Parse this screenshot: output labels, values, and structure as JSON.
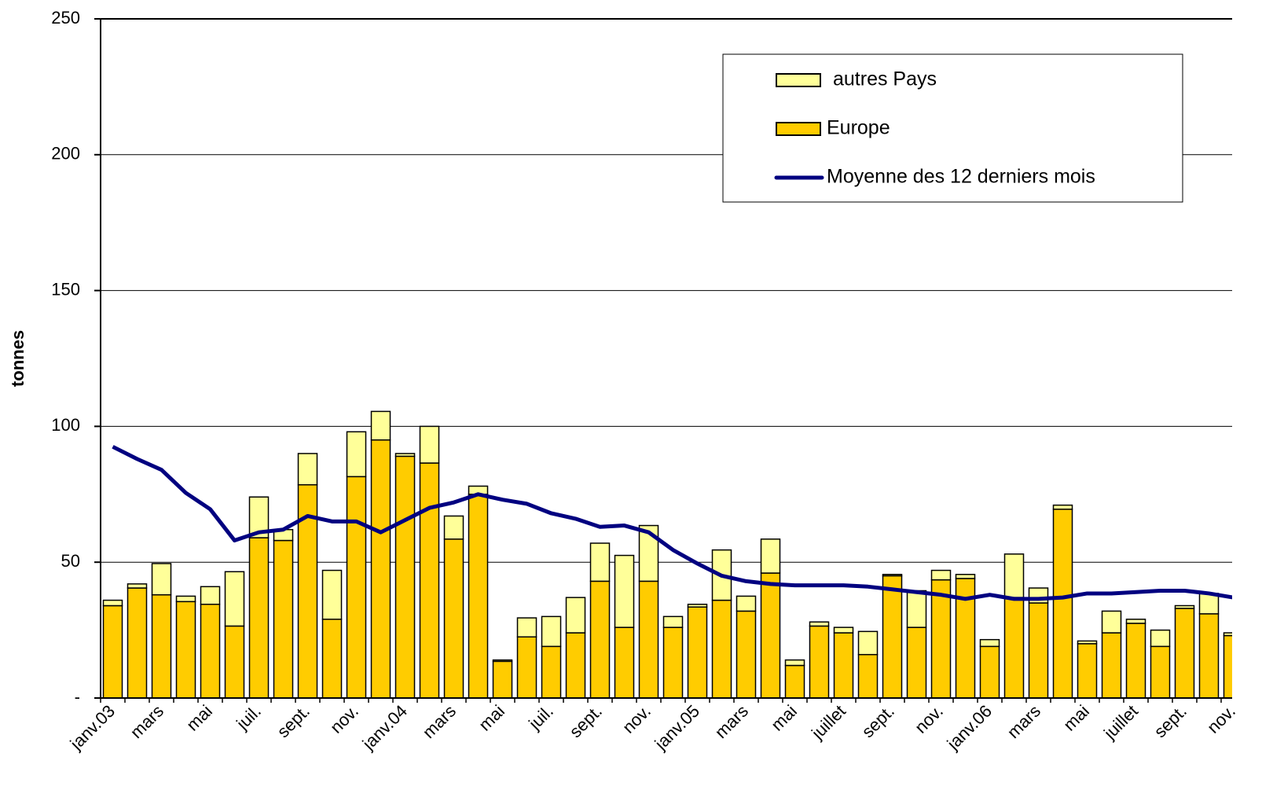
{
  "chart_data": {
    "type": "bar",
    "stacked": true,
    "y_label": "tonnes",
    "categories": [
      "janv.03",
      null,
      "mars",
      null,
      "mai",
      null,
      "juil.",
      null,
      "sept.",
      null,
      "nov.",
      null,
      "janv.04",
      null,
      "mars",
      null,
      "mai",
      null,
      "juil.",
      null,
      "sept.",
      null,
      "nov.",
      null,
      "janv.05",
      null,
      "mars",
      null,
      "mai",
      null,
      "juillet",
      null,
      "sept.",
      null,
      "nov.",
      null,
      "janv.06",
      null,
      "mars",
      null,
      "mai",
      null,
      "juillet",
      null,
      "sept.",
      null,
      "nov."
    ],
    "series": [
      {
        "name": "Europe",
        "type": "bar",
        "color": "#ffcc00",
        "values": [
          34,
          40.5,
          38,
          35.5,
          34.5,
          26.5,
          59,
          58,
          78.5,
          29,
          81.5,
          95,
          89,
          86.5,
          58.5,
          75,
          13.5,
          22.5,
          19,
          24,
          43,
          26,
          43,
          26,
          33.5,
          36,
          32,
          46,
          12,
          26.5,
          24,
          16,
          45,
          26,
          43.5,
          44,
          19,
          37,
          35,
          69.5,
          20,
          24,
          27.5,
          19,
          33,
          31,
          23
        ]
      },
      {
        "name": "autres Pays",
        "type": "bar",
        "color": "#ffff99",
        "values": [
          2,
          1.5,
          11.5,
          2,
          6.5,
          20,
          15,
          4,
          11.5,
          18,
          16.5,
          10.5,
          1,
          13.5,
          8.5,
          3,
          0.5,
          7,
          11,
          13,
          14,
          26.5,
          20.5,
          4,
          1,
          18.5,
          5.5,
          12.5,
          2,
          1.5,
          2,
          8.5,
          0.5,
          13.5,
          3.5,
          1.5,
          2.5,
          16,
          5.5,
          1.5,
          1,
          8,
          1.5,
          6,
          1,
          7.5,
          1
        ]
      },
      {
        "name": "Moyenne des 12 derniers mois",
        "type": "line",
        "color": "#000080",
        "values": [
          92.5,
          88,
          84,
          75.5,
          69.5,
          58,
          61,
          62,
          67,
          65,
          65,
          61,
          65.5,
          70,
          72,
          75,
          73,
          71.5,
          68,
          66,
          63,
          63.5,
          61,
          54.5,
          49.5,
          45,
          43,
          42,
          41.5,
          41.5,
          41.5,
          41,
          40,
          39,
          38,
          36.5,
          38,
          36.5,
          36.5,
          37,
          38.5,
          38.5,
          39,
          39.5,
          39.5,
          38.5,
          37
        ]
      }
    ],
    "ylim": [
      0,
      250
    ],
    "yticks": [
      {
        "value": 0,
        "label": "-"
      },
      50,
      100,
      150,
      200,
      250
    ],
    "grid": true,
    "legend": "top-right"
  }
}
